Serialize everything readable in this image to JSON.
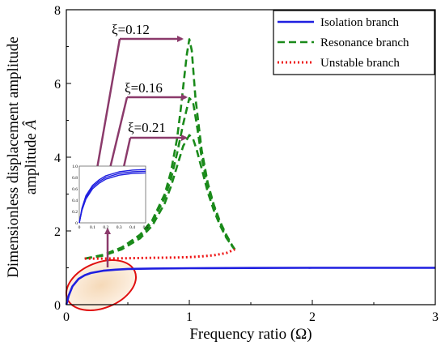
{
  "chart_data": {
    "type": "line",
    "xlabel": "Frequency ratio (Ω)",
    "ylabel": "Dimensionless displacement amplitude",
    "ylabel_symbol": "Â",
    "xlim": [
      0,
      3
    ],
    "ylim": [
      0,
      8
    ],
    "xticks": [
      "0",
      "1",
      "2",
      "3"
    ],
    "yticks": [
      "0",
      "2",
      "4",
      "6",
      "8"
    ],
    "grid": false,
    "legend_position": "top-right",
    "series": [
      {
        "name": "Isolation branch",
        "style": "solid",
        "color": "#1f1fe0",
        "x": [
          0,
          0.02,
          0.05,
          0.1,
          0.15,
          0.2,
          0.3,
          0.4,
          0.5,
          0.7,
          1.0,
          1.5,
          2.0,
          2.5,
          3.0
        ],
        "y": [
          0,
          0.25,
          0.5,
          0.7,
          0.8,
          0.86,
          0.92,
          0.95,
          0.97,
          0.98,
          0.99,
          0.995,
          1.0,
          1.0,
          1.0
        ]
      },
      {
        "name": "Resonance branch",
        "style": "dashed",
        "color": "#1a8a1a",
        "curves": [
          {
            "label": "ξ=0.12",
            "x": [
              0.15,
              0.3,
              0.45,
              0.6,
              0.7,
              0.8,
              0.85,
              0.9,
              0.93,
              0.96,
              0.98,
              1.0,
              1.02,
              1.05,
              1.1,
              1.15,
              1.2,
              1.25,
              1.3,
              1.35,
              1.37
            ],
            "y": [
              1.25,
              1.35,
              1.55,
              1.9,
              2.3,
              3.0,
              3.6,
              4.5,
              5.3,
              6.2,
              6.8,
              7.2,
              6.9,
              5.6,
              4.2,
              3.3,
              2.7,
              2.25,
              1.9,
              1.6,
              1.5
            ]
          },
          {
            "label": "ξ=0.16",
            "x": [
              0.15,
              0.3,
              0.45,
              0.6,
              0.7,
              0.8,
              0.85,
              0.9,
              0.95,
              1.0,
              1.03,
              1.06,
              1.1,
              1.15,
              1.2,
              1.25,
              1.3,
              1.35,
              1.37
            ],
            "y": [
              1.25,
              1.35,
              1.55,
              1.85,
              2.25,
              2.9,
              3.4,
              4.1,
              4.9,
              5.6,
              5.5,
              4.9,
              4.0,
              3.2,
              2.65,
              2.2,
              1.85,
              1.58,
              1.5
            ]
          },
          {
            "label": "ξ=0.21",
            "x": [
              0.15,
              0.3,
              0.45,
              0.6,
              0.7,
              0.8,
              0.85,
              0.9,
              0.95,
              1.0,
              1.03,
              1.06,
              1.1,
              1.15,
              1.2,
              1.25,
              1.3,
              1.35,
              1.37
            ],
            "y": [
              1.25,
              1.33,
              1.5,
              1.8,
              2.15,
              2.75,
              3.2,
              3.75,
              4.3,
              4.6,
              4.5,
              4.2,
              3.7,
              3.05,
              2.55,
              2.15,
              1.82,
              1.58,
              1.5
            ]
          }
        ]
      },
      {
        "name": "Unstable branch",
        "style": "dotted",
        "color": "#ee1111",
        "x": [
          0.15,
          0.3,
          0.5,
          0.7,
          0.9,
          1.0,
          1.1,
          1.2,
          1.3,
          1.37
        ],
        "y": [
          1.25,
          1.25,
          1.26,
          1.27,
          1.28,
          1.29,
          1.31,
          1.34,
          1.4,
          1.5
        ]
      }
    ],
    "annotations": [
      "ξ=0.12",
      "ξ=0.16",
      "ξ=0.21"
    ],
    "inset": {
      "type": "line",
      "xlim": [
        0,
        0.5
      ],
      "ylim": [
        0,
        1.0
      ],
      "xticks": [
        "0",
        "0.1",
        "0.2",
        "0.3",
        "0.4",
        "0.5"
      ],
      "yticks": [
        "0",
        "0.2",
        "0.4",
        "0.6",
        "0.8",
        "1.0"
      ],
      "series": [
        {
          "x": [
            0,
            0.02,
            0.05,
            0.1,
            0.15,
            0.2,
            0.3,
            0.4,
            0.5
          ],
          "y": [
            0,
            0.22,
            0.42,
            0.6,
            0.7,
            0.77,
            0.84,
            0.87,
            0.88
          ]
        },
        {
          "x": [
            0,
            0.02,
            0.05,
            0.1,
            0.15,
            0.2,
            0.3,
            0.4,
            0.5
          ],
          "y": [
            0,
            0.24,
            0.45,
            0.63,
            0.73,
            0.8,
            0.87,
            0.9,
            0.91
          ]
        },
        {
          "x": [
            0,
            0.02,
            0.05,
            0.1,
            0.15,
            0.2,
            0.3,
            0.4,
            0.5
          ],
          "y": [
            0,
            0.26,
            0.48,
            0.66,
            0.76,
            0.83,
            0.9,
            0.93,
            0.94
          ]
        }
      ]
    }
  }
}
